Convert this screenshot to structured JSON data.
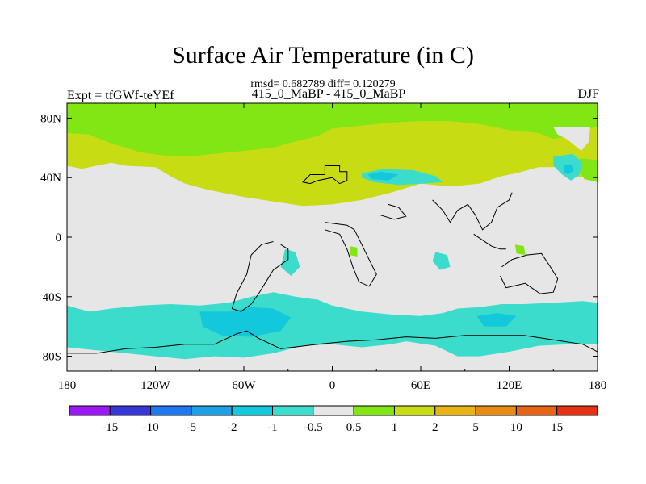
{
  "figure": {
    "title": "Surface Air Temperature (in C)",
    "stats_line": "rmsd= 0.682789 diff= 0.120279",
    "comparison_line": "415_0_MaBP - 415_0_MaBP",
    "experiment_label": "Expt = tfGWf-teYEf",
    "season_label": "DJF"
  },
  "chart_data": {
    "type": "heatmap",
    "title": "Surface Air Temperature (in C)",
    "xlabel": "",
    "ylabel": "",
    "xlim": [
      -180,
      180
    ],
    "ylim": [
      -90,
      90
    ],
    "x_ticks": [
      {
        "value": -180,
        "label": "180"
      },
      {
        "value": -120,
        "label": "120W"
      },
      {
        "value": -60,
        "label": "60W"
      },
      {
        "value": 0,
        "label": "0"
      },
      {
        "value": 60,
        "label": "60E"
      },
      {
        "value": 120,
        "label": "120E"
      },
      {
        "value": 180,
        "label": "180"
      }
    ],
    "y_ticks": [
      {
        "value": 80,
        "label": "80N"
      },
      {
        "value": 40,
        "label": "40N"
      },
      {
        "value": 0,
        "label": "0"
      },
      {
        "value": -40,
        "label": "40S"
      },
      {
        "value": -80,
        "label": "80S"
      }
    ],
    "colorbar": {
      "placement": "bottom",
      "boundary_labels": [
        "-15",
        "-10",
        "-5",
        "-2",
        "-1",
        "-0.5",
        "0.5",
        "1",
        "2",
        "5",
        "10",
        "15"
      ],
      "colors": [
        "#9b19f5",
        "#3737d8",
        "#1e78f0",
        "#1ea0e6",
        "#14c8dc",
        "#3cdccc",
        "#e6e6e6",
        "#82e614",
        "#c8dc14",
        "#e6b414",
        "#e68c14",
        "#e66414",
        "#e63214"
      ]
    },
    "background_class_color": "#e6e6e6",
    "regions": [
      {
        "name": "northern-band-green",
        "class": 8,
        "lonlat": [
          [
            -180,
            48
          ],
          [
            -170,
            46
          ],
          [
            -150,
            50
          ],
          [
            -140,
            48
          ],
          [
            -120,
            47
          ],
          [
            -110,
            41
          ],
          [
            -100,
            36
          ],
          [
            -85,
            32
          ],
          [
            -60,
            27
          ],
          [
            -40,
            24
          ],
          [
            -20,
            21
          ],
          [
            0,
            22
          ],
          [
            20,
            25
          ],
          [
            40,
            30
          ],
          [
            60,
            36
          ],
          [
            80,
            34
          ],
          [
            100,
            36
          ],
          [
            115,
            41
          ],
          [
            125,
            43
          ],
          [
            140,
            47
          ],
          [
            150,
            47
          ],
          [
            155,
            48
          ],
          [
            165,
            40
          ],
          [
            180,
            42
          ],
          [
            180,
            90
          ],
          [
            -180,
            90
          ]
        ]
      },
      {
        "name": "northern-band-yellow",
        "class": 7,
        "lonlat": [
          [
            -180,
            90
          ],
          [
            180,
            90
          ],
          [
            180,
            74
          ],
          [
            168,
            72
          ],
          [
            160,
            68
          ],
          [
            150,
            66
          ],
          [
            140,
            70
          ],
          [
            120,
            72
          ],
          [
            100,
            76
          ],
          [
            80,
            78
          ],
          [
            60,
            78
          ],
          [
            40,
            77
          ],
          [
            20,
            75
          ],
          [
            0,
            73
          ],
          [
            -10,
            68
          ],
          [
            -30,
            63
          ],
          [
            -40,
            60
          ],
          [
            -60,
            58
          ],
          [
            -80,
            56
          ],
          [
            -100,
            54
          ],
          [
            -115,
            55
          ],
          [
            -130,
            57
          ],
          [
            -150,
            63
          ],
          [
            -165,
            69
          ],
          [
            -180,
            70
          ]
        ]
      },
      {
        "name": "gap-inside-band",
        "class": 6,
        "lonlat": [
          [
            150,
            74
          ],
          [
            175,
            74
          ],
          [
            174,
            64
          ],
          [
            169,
            58
          ],
          [
            164,
            62
          ],
          [
            159,
            66
          ],
          [
            153,
            69
          ]
        ]
      },
      {
        "name": "yellow-east-edge",
        "class": 7,
        "lonlat": [
          [
            168,
            53
          ],
          [
            180,
            52
          ],
          [
            180,
            37
          ],
          [
            171,
            39
          ],
          [
            168,
            44
          ]
        ]
      },
      {
        "name": "cold-core-east-pacific",
        "class": 5,
        "lonlat": [
          [
            150,
            54
          ],
          [
            163,
            56
          ],
          [
            169,
            51
          ],
          [
            168,
            42
          ],
          [
            162,
            38
          ],
          [
            156,
            42
          ],
          [
            150,
            48
          ]
        ]
      },
      {
        "name": "cold-core-east-pacific-inner",
        "class": 4,
        "lonlat": [
          [
            157,
            48
          ],
          [
            162,
            49
          ],
          [
            164,
            45
          ],
          [
            160,
            42
          ],
          [
            157,
            44
          ]
        ]
      },
      {
        "name": "cold-core-north-atlantic",
        "class": 5,
        "lonlat": [
          [
            20,
            43
          ],
          [
            35,
            46
          ],
          [
            55,
            45
          ],
          [
            70,
            41
          ],
          [
            75,
            37
          ],
          [
            62,
            36
          ],
          [
            45,
            35
          ],
          [
            28,
            37
          ],
          [
            20,
            40
          ]
        ]
      },
      {
        "name": "cold-core-north-atlantic-inner",
        "class": 4,
        "lonlat": [
          [
            24,
            42
          ],
          [
            33,
            44
          ],
          [
            45,
            42
          ],
          [
            38,
            38
          ],
          [
            27,
            39
          ]
        ]
      },
      {
        "name": "southern-ocean-band",
        "class": 5,
        "lonlat": [
          [
            -180,
            -46
          ],
          [
            -165,
            -50
          ],
          [
            -150,
            -48
          ],
          [
            -130,
            -46
          ],
          [
            -110,
            -45
          ],
          [
            -90,
            -46
          ],
          [
            -70,
            -44
          ],
          [
            -55,
            -40
          ],
          [
            -40,
            -37
          ],
          [
            -25,
            -40
          ],
          [
            -10,
            -42
          ],
          [
            0,
            -46
          ],
          [
            20,
            -50
          ],
          [
            40,
            -52
          ],
          [
            60,
            -53
          ],
          [
            75,
            -51
          ],
          [
            85,
            -48
          ],
          [
            100,
            -47
          ],
          [
            115,
            -45
          ],
          [
            130,
            -45
          ],
          [
            150,
            -44
          ],
          [
            170,
            -43
          ],
          [
            180,
            -44
          ],
          [
            180,
            -72
          ],
          [
            160,
            -72
          ],
          [
            140,
            -73
          ],
          [
            120,
            -77
          ],
          [
            100,
            -80
          ],
          [
            85,
            -80
          ],
          [
            70,
            -73
          ],
          [
            50,
            -70
          ],
          [
            40,
            -72
          ],
          [
            20,
            -74
          ],
          [
            0,
            -72
          ],
          [
            -20,
            -73
          ],
          [
            -40,
            -78
          ],
          [
            -60,
            -81
          ],
          [
            -80,
            -80
          ],
          [
            -100,
            -82
          ],
          [
            -120,
            -80
          ],
          [
            -140,
            -78
          ],
          [
            -160,
            -76
          ],
          [
            -180,
            -74
          ]
        ]
      },
      {
        "name": "southern-ocean-cold-core",
        "class": 4,
        "lonlat": [
          [
            -90,
            -50
          ],
          [
            -70,
            -50
          ],
          [
            -55,
            -47
          ],
          [
            -40,
            -48
          ],
          [
            -28,
            -54
          ],
          [
            -35,
            -63
          ],
          [
            -55,
            -67
          ],
          [
            -75,
            -66
          ],
          [
            -88,
            -60
          ]
        ]
      },
      {
        "name": "southern-ocean-cold-core-east",
        "class": 4,
        "lonlat": [
          [
            98,
            -53
          ],
          [
            112,
            -51
          ],
          [
            125,
            -53
          ],
          [
            118,
            -60
          ],
          [
            103,
            -60
          ]
        ]
      },
      {
        "name": "south-atlantic-patch",
        "class": 5,
        "lonlat": [
          [
            -32,
            -8
          ],
          [
            -25,
            -10
          ],
          [
            -22,
            -20
          ],
          [
            -28,
            -26
          ],
          [
            -35,
            -20
          ]
        ]
      },
      {
        "name": "indian-ocean-patch",
        "class": 5,
        "lonlat": [
          [
            70,
            -10
          ],
          [
            78,
            -12
          ],
          [
            80,
            -20
          ],
          [
            73,
            -22
          ],
          [
            68,
            -16
          ]
        ]
      },
      {
        "name": "africa-warm-spot",
        "class": 7,
        "lonlat": [
          [
            12,
            -6
          ],
          [
            17,
            -7
          ],
          [
            17,
            -13
          ],
          [
            12,
            -12
          ]
        ]
      },
      {
        "name": "pacific-warm-spot",
        "class": 7,
        "lonlat": [
          [
            124,
            -5
          ],
          [
            130,
            -6
          ],
          [
            131,
            -12
          ],
          [
            125,
            -11
          ]
        ]
      }
    ],
    "coastlines": [
      {
        "name": "north-america-coast",
        "lonlat": [
          [
            -10,
            42
          ],
          [
            -5,
            42
          ],
          [
            -5,
            48
          ],
          [
            5,
            48
          ],
          [
            5,
            44
          ],
          [
            10,
            44
          ],
          [
            10,
            38
          ],
          [
            5,
            36
          ],
          [
            0,
            40
          ],
          [
            -10,
            38
          ],
          [
            -15,
            36
          ],
          [
            -20,
            37
          ],
          [
            -15,
            42
          ],
          [
            -10,
            42
          ]
        ]
      },
      {
        "name": "south-america-coast",
        "lonlat": [
          [
            -35,
            -5
          ],
          [
            -30,
            -8
          ],
          [
            -30,
            -15
          ],
          [
            -40,
            -22
          ],
          [
            -45,
            -30
          ],
          [
            -50,
            -38
          ],
          [
            -55,
            -45
          ],
          [
            -62,
            -50
          ],
          [
            -68,
            -48
          ],
          [
            -65,
            -38
          ],
          [
            -58,
            -25
          ],
          [
            -55,
            -12
          ],
          [
            -48,
            -5
          ],
          [
            -40,
            -3
          ]
        ]
      },
      {
        "name": "africa-coast",
        "lonlat": [
          [
            -5,
            10
          ],
          [
            10,
            8
          ],
          [
            15,
            5
          ],
          [
            20,
            -5
          ],
          [
            25,
            -15
          ],
          [
            30,
            -25
          ],
          [
            25,
            -33
          ],
          [
            18,
            -30
          ],
          [
            14,
            -20
          ],
          [
            10,
            -8
          ],
          [
            5,
            2
          ],
          [
            -5,
            5
          ]
        ]
      },
      {
        "name": "arabia-coast",
        "lonlat": [
          [
            32,
            15
          ],
          [
            42,
            12
          ],
          [
            50,
            14
          ],
          [
            45,
            20
          ],
          [
            38,
            22
          ]
        ]
      },
      {
        "name": "south-asia-coast",
        "lonlat": [
          [
            68,
            25
          ],
          [
            75,
            18
          ],
          [
            80,
            10
          ],
          [
            85,
            18
          ],
          [
            92,
            22
          ],
          [
            97,
            15
          ],
          [
            102,
            5
          ],
          [
            108,
            10
          ],
          [
            112,
            20
          ],
          [
            120,
            25
          ],
          [
            122,
            30
          ]
        ]
      },
      {
        "name": "maritime-continent-coast",
        "lonlat": [
          [
            96,
            2
          ],
          [
            102,
            -2
          ],
          [
            108,
            -6
          ],
          [
            114,
            -8
          ],
          [
            118,
            -8
          ]
        ]
      },
      {
        "name": "australia-coast",
        "lonlat": [
          [
            115,
            -20
          ],
          [
            122,
            -15
          ],
          [
            132,
            -12
          ],
          [
            142,
            -11
          ],
          [
            148,
            -20
          ],
          [
            153,
            -28
          ],
          [
            150,
            -37
          ],
          [
            141,
            -38
          ],
          [
            131,
            -31
          ],
          [
            118,
            -34
          ],
          [
            114,
            -26
          ]
        ]
      },
      {
        "name": "antarctica-coast",
        "lonlat": [
          [
            -180,
            -78
          ],
          [
            -160,
            -78
          ],
          [
            -140,
            -75
          ],
          [
            -120,
            -74
          ],
          [
            -100,
            -72
          ],
          [
            -80,
            -72
          ],
          [
            -65,
            -65
          ],
          [
            -58,
            -63
          ],
          [
            -50,
            -68
          ],
          [
            -35,
            -75
          ],
          [
            -10,
            -72
          ],
          [
            10,
            -70
          ],
          [
            30,
            -69
          ],
          [
            50,
            -67
          ],
          [
            70,
            -68
          ],
          [
            90,
            -66
          ],
          [
            110,
            -66
          ],
          [
            130,
            -66
          ],
          [
            150,
            -69
          ],
          [
            170,
            -72
          ],
          [
            180,
            -77
          ]
        ]
      }
    ]
  }
}
